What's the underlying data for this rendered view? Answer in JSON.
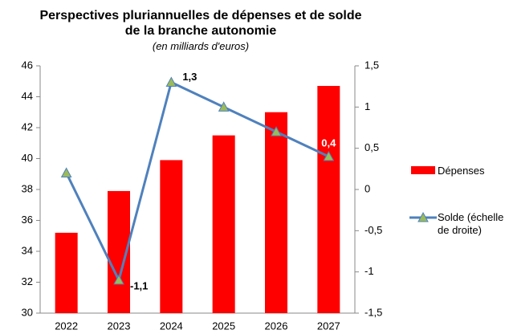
{
  "chart_data": {
    "type": "bar_line",
    "title": "Perspectives pluriannuelles de dépenses et de solde de la branche autonomie",
    "subtitle": "(en milliards d'euros)",
    "categories": [
      "2022",
      "2023",
      "2024",
      "2025",
      "2026",
      "2027"
    ],
    "series": [
      {
        "name": "Dépenses",
        "type": "bar",
        "color": "#ff0000",
        "values": [
          35.2,
          37.9,
          39.9,
          41.5,
          43.0,
          44.7
        ]
      },
      {
        "name": "Solde (échelle de droite)",
        "type": "line",
        "axis": "y2",
        "color": "#4f81bd",
        "marker_color": "#9bbb59",
        "values": [
          0.2,
          -1.1,
          1.3,
          1.0,
          0.7,
          0.4
        ],
        "value_labels": [
          null,
          "-1,1",
          "1,3",
          null,
          null,
          "0,4"
        ]
      }
    ],
    "ylim": [
      30,
      46
    ],
    "yticks": [
      30,
      32,
      34,
      36,
      38,
      40,
      42,
      44,
      46
    ],
    "y2lim": [
      -1.5,
      1.5
    ],
    "y2ticks": [
      {
        "value": -1.5,
        "label": "-1,5"
      },
      -1,
      {
        "value": -0.5,
        "label": "-0,5"
      },
      0,
      {
        "value": 0.5,
        "label": "0,5"
      },
      1,
      {
        "value": 1.5,
        "label": "1,5"
      }
    ],
    "grid": false
  }
}
